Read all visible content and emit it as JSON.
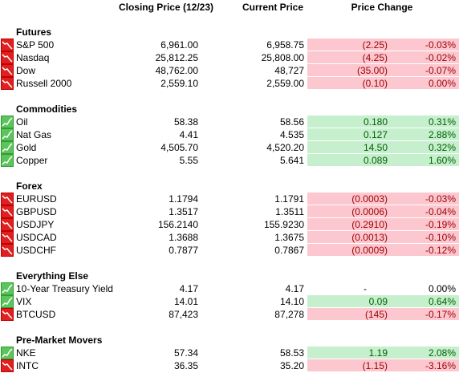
{
  "header": {
    "columns": [
      "Closing Price (12/23)",
      "Current Price",
      "Price Change"
    ]
  },
  "sections": [
    {
      "title": "Futures",
      "rows": [
        [
          "S&P 500",
          "6,961.00",
          "6,958.75",
          "(2.25)",
          "-0.03%"
        ],
        [
          "Nasdaq",
          "25,812.25",
          "25,808.00",
          "(4.25)",
          "-0.02%"
        ],
        [
          "Dow",
          "48,762.00",
          "48,727",
          "(35.00)",
          "-0.07%"
        ],
        [
          "Russell 2000",
          "2,559.10",
          "2,559.00",
          "(0.10)",
          "0.00%"
        ]
      ]
    },
    {
      "title": "Commodities",
      "rows": [
        [
          "Oil",
          "58.38",
          "58.56",
          "0.180",
          "0.31%"
        ],
        [
          "Nat Gas",
          "4.41",
          "4.535",
          "0.127",
          "2.88%"
        ],
        [
          "Gold",
          "4,505.70",
          "4,520.20",
          "14.50",
          "0.32%"
        ],
        [
          "Copper",
          "5.55",
          "5.641",
          "0.089",
          "1.60%"
        ]
      ]
    },
    {
      "title": "Forex",
      "rows": [
        [
          "EURUSD",
          "1.1794",
          "1.1791",
          "(0.0003)",
          "-0.03%"
        ],
        [
          "GBPUSD",
          "1.3517",
          "1.3511",
          "(0.0006)",
          "-0.04%"
        ],
        [
          "USDJPY",
          "156.2140",
          "155.9230",
          "(0.2910)",
          "-0.19%"
        ],
        [
          "USDCAD",
          "1.3688",
          "1.3675",
          "(0.0013)",
          "-0.10%"
        ],
        [
          "USDCHF",
          "0.7877",
          "0.7867",
          "(0.0009)",
          "-0.12%"
        ]
      ]
    },
    {
      "title": "Everything Else",
      "rows": [
        [
          "10-Year Treasury Yield",
          "4.17",
          "4.17",
          "-",
          "0.00%"
        ],
        [
          "VIX",
          "14.01",
          "14.10",
          "0.09",
          "0.64%"
        ],
        [
          "BTCUSD",
          "87,423",
          "87,278",
          "(145)",
          "-0.17%"
        ]
      ]
    },
    {
      "title": "Pre-Market Movers",
      "rows": [
        [
          "NKE",
          "57.34",
          "58.53",
          "1.19",
          "2.08%"
        ],
        [
          "INTC",
          "36.35",
          "35.20",
          "(1.15)",
          "-3.16%"
        ]
      ]
    }
  ]
}
